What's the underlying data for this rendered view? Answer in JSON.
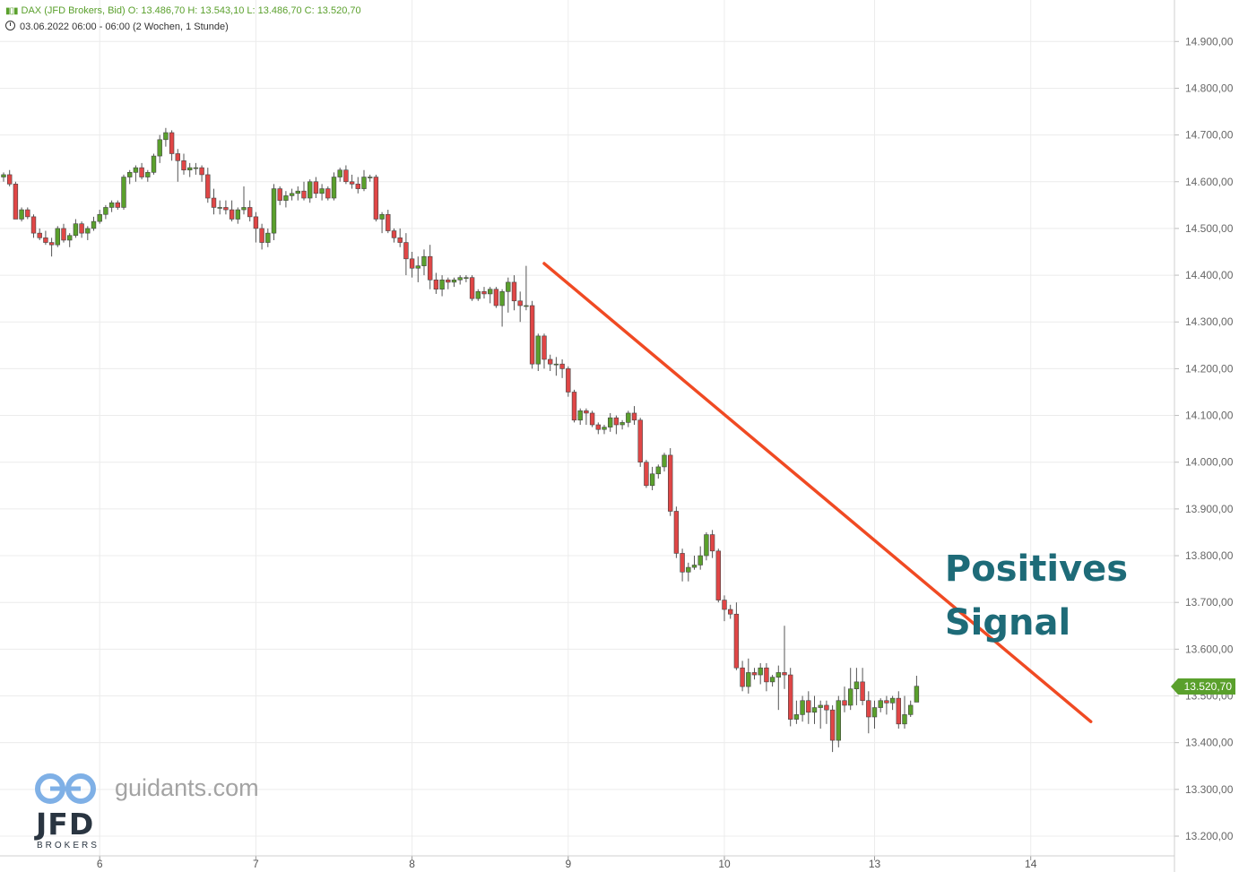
{
  "header": {
    "line1": "DAX (JFD Brokers, Bid)  O: 13.486,70  H: 13.543,10  L: 13.486,70  C: 13.520,70",
    "line2": "03.06.2022 06:00 - 06:00   (2 Wochen, 1 Stunde)"
  },
  "annotation": {
    "line1": "Positives",
    "line2": "Signal"
  },
  "branding": {
    "site": "guidants.com",
    "logo": "JFD",
    "logo_sub": "BROKERS"
  },
  "last_price_label": "13.520,70",
  "colors": {
    "up": "#5aa02c",
    "down": "#e04646",
    "trendline": "#f04a23",
    "annotation": "#1e6b78",
    "grid": "#ececec"
  },
  "chart_data": {
    "type": "candlestick",
    "title": "",
    "y_ticks": [
      13200,
      13300,
      13400,
      13500,
      13600,
      13700,
      13800,
      13900,
      14000,
      14100,
      14200,
      14300,
      14400,
      14500,
      14600,
      14700,
      14800,
      14900
    ],
    "y_tick_labels": [
      "13.200,00",
      "13.300,00",
      "13.400,00",
      "13.500,00",
      "13.600,00",
      "13.700,00",
      "13.800,00",
      "13.900,00",
      "14.000,00",
      "14.100,00",
      "14.200,00",
      "14.300,00",
      "14.400,00",
      "14.500,00",
      "14.600,00",
      "14.700,00",
      "14.800,00",
      "14.900,00"
    ],
    "x_labels": [
      {
        "label": "6",
        "index": 16
      },
      {
        "label": "7",
        "index": 42
      },
      {
        "label": "8",
        "index": 68
      },
      {
        "label": "9",
        "index": 94
      },
      {
        "label": "10",
        "index": 120
      },
      {
        "label": "13",
        "index": 145
      },
      {
        "label": "14",
        "index": 171
      }
    ],
    "candles": [
      [
        14610,
        14620,
        14600,
        14615
      ],
      [
        14615,
        14625,
        14590,
        14595
      ],
      [
        14595,
        14600,
        14520,
        14520
      ],
      [
        14520,
        14545,
        14515,
        14540
      ],
      [
        14540,
        14545,
        14520,
        14525
      ],
      [
        14525,
        14530,
        14480,
        14490
      ],
      [
        14490,
        14500,
        14475,
        14480
      ],
      [
        14480,
        14495,
        14465,
        14470
      ],
      [
        14470,
        14480,
        14440,
        14465
      ],
      [
        14465,
        14505,
        14460,
        14500
      ],
      [
        14500,
        14510,
        14470,
        14475
      ],
      [
        14475,
        14490,
        14460,
        14485
      ],
      [
        14485,
        14520,
        14480,
        14510
      ],
      [
        14510,
        14515,
        14480,
        14490
      ],
      [
        14490,
        14505,
        14475,
        14500
      ],
      [
        14500,
        14525,
        14495,
        14515
      ],
      [
        14515,
        14540,
        14510,
        14530
      ],
      [
        14530,
        14550,
        14520,
        14545
      ],
      [
        14545,
        14560,
        14535,
        14555
      ],
      [
        14555,
        14560,
        14540,
        14545
      ],
      [
        14545,
        14615,
        14540,
        14610
      ],
      [
        14610,
        14625,
        14595,
        14620
      ],
      [
        14620,
        14635,
        14600,
        14630
      ],
      [
        14630,
        14640,
        14605,
        14610
      ],
      [
        14610,
        14625,
        14600,
        14620
      ],
      [
        14620,
        14660,
        14615,
        14655
      ],
      [
        14655,
        14700,
        14640,
        14690
      ],
      [
        14690,
        14715,
        14675,
        14705
      ],
      [
        14705,
        14710,
        14645,
        14660
      ],
      [
        14660,
        14670,
        14600,
        14645
      ],
      [
        14645,
        14660,
        14615,
        14625
      ],
      [
        14625,
        14640,
        14610,
        14630
      ],
      [
        14630,
        14640,
        14615,
        14630
      ],
      [
        14630,
        14635,
        14600,
        14615
      ],
      [
        14615,
        14630,
        14555,
        14565
      ],
      [
        14565,
        14585,
        14530,
        14545
      ],
      [
        14545,
        14560,
        14530,
        14545
      ],
      [
        14545,
        14560,
        14530,
        14540
      ],
      [
        14540,
        14560,
        14515,
        14520
      ],
      [
        14520,
        14545,
        14510,
        14540
      ],
      [
        14540,
        14590,
        14530,
        14545
      ],
      [
        14545,
        14560,
        14515,
        14525
      ],
      [
        14525,
        14535,
        14470,
        14500
      ],
      [
        14500,
        14510,
        14455,
        14470
      ],
      [
        14470,
        14500,
        14460,
        14490
      ],
      [
        14490,
        14595,
        14475,
        14585
      ],
      [
        14585,
        14590,
        14550,
        14560
      ],
      [
        14560,
        14580,
        14545,
        14570
      ],
      [
        14570,
        14585,
        14560,
        14575
      ],
      [
        14575,
        14590,
        14560,
        14580
      ],
      [
        14580,
        14600,
        14560,
        14565
      ],
      [
        14565,
        14605,
        14555,
        14600
      ],
      [
        14600,
        14610,
        14565,
        14575
      ],
      [
        14575,
        14595,
        14560,
        14585
      ],
      [
        14585,
        14590,
        14560,
        14565
      ],
      [
        14565,
        14620,
        14560,
        14610
      ],
      [
        14610,
        14630,
        14600,
        14625
      ],
      [
        14625,
        14635,
        14595,
        14600
      ],
      [
        14600,
        14615,
        14585,
        14595
      ],
      [
        14595,
        14610,
        14575,
        14585
      ],
      [
        14585,
        14625,
        14580,
        14610
      ],
      [
        14610,
        14615,
        14600,
        14610
      ],
      [
        14610,
        14615,
        14515,
        14520
      ],
      [
        14520,
        14535,
        14490,
        14530
      ],
      [
        14530,
        14540,
        14490,
        14495
      ],
      [
        14495,
        14500,
        14470,
        14480
      ],
      [
        14480,
        14500,
        14460,
        14470
      ],
      [
        14470,
        14490,
        14400,
        14435
      ],
      [
        14435,
        14450,
        14395,
        14415
      ],
      [
        14415,
        14440,
        14385,
        14420
      ],
      [
        14420,
        14455,
        14400,
        14440
      ],
      [
        14440,
        14465,
        14370,
        14390
      ],
      [
        14390,
        14405,
        14360,
        14370
      ],
      [
        14370,
        14400,
        14355,
        14390
      ],
      [
        14390,
        14395,
        14370,
        14385
      ],
      [
        14385,
        14395,
        14375,
        14390
      ],
      [
        14390,
        14400,
        14380,
        14395
      ],
      [
        14395,
        14400,
        14385,
        14395
      ],
      [
        14395,
        14400,
        14345,
        14350
      ],
      [
        14350,
        14370,
        14345,
        14365
      ],
      [
        14365,
        14375,
        14350,
        14360
      ],
      [
        14360,
        14375,
        14340,
        14370
      ],
      [
        14370,
        14375,
        14330,
        14335
      ],
      [
        14335,
        14370,
        14290,
        14365
      ],
      [
        14365,
        14395,
        14320,
        14385
      ],
      [
        14385,
        14400,
        14325,
        14345
      ],
      [
        14345,
        14365,
        14300,
        14335
      ],
      [
        14335,
        14420,
        14325,
        14335
      ],
      [
        14335,
        14345,
        14200,
        14210
      ],
      [
        14210,
        14275,
        14195,
        14270
      ],
      [
        14270,
        14275,
        14200,
        14220
      ],
      [
        14220,
        14230,
        14195,
        14210
      ],
      [
        14210,
        14225,
        14185,
        14210
      ],
      [
        14210,
        14220,
        14180,
        14200
      ],
      [
        14200,
        14205,
        14140,
        14150
      ],
      [
        14150,
        14155,
        14085,
        14090
      ],
      [
        14090,
        14115,
        14080,
        14110
      ],
      [
        14110,
        14115,
        14080,
        14105
      ],
      [
        14105,
        14110,
        14075,
        14080
      ],
      [
        14080,
        14085,
        14060,
        14070
      ],
      [
        14070,
        14080,
        14060,
        14075
      ],
      [
        14075,
        14105,
        14065,
        14095
      ],
      [
        14095,
        14100,
        14060,
        14080
      ],
      [
        14080,
        14090,
        14070,
        14085
      ],
      [
        14085,
        14110,
        14075,
        14105
      ],
      [
        14105,
        14120,
        14080,
        14090
      ],
      [
        14090,
        14095,
        13990,
        14000
      ],
      [
        14000,
        14005,
        13945,
        13950
      ],
      [
        13950,
        13990,
        13940,
        13975
      ],
      [
        13975,
        13995,
        13965,
        13990
      ],
      [
        13990,
        14020,
        13980,
        14015
      ],
      [
        14015,
        14030,
        13885,
        13895
      ],
      [
        13895,
        13905,
        13795,
        13805
      ],
      [
        13805,
        13815,
        13745,
        13765
      ],
      [
        13765,
        13785,
        13745,
        13775
      ],
      [
        13775,
        13800,
        13770,
        13780
      ],
      [
        13780,
        13820,
        13770,
        13800
      ],
      [
        13800,
        13850,
        13790,
        13845
      ],
      [
        13845,
        13855,
        13795,
        13810
      ],
      [
        13810,
        13815,
        13700,
        13705
      ],
      [
        13705,
        13715,
        13660,
        13685
      ],
      [
        13685,
        13695,
        13665,
        13675
      ],
      [
        13675,
        13700,
        13555,
        13560
      ],
      [
        13560,
        13575,
        13510,
        13520
      ],
      [
        13520,
        13580,
        13505,
        13550
      ],
      [
        13550,
        13560,
        13535,
        13545
      ],
      [
        13545,
        13570,
        13525,
        13560
      ],
      [
        13560,
        13570,
        13510,
        13530
      ],
      [
        13530,
        13545,
        13520,
        13540
      ],
      [
        13540,
        13565,
        13470,
        13550
      ],
      [
        13550,
        13650,
        13515,
        13545
      ],
      [
        13545,
        13560,
        13435,
        13450
      ],
      [
        13450,
        13490,
        13440,
        13460
      ],
      [
        13460,
        13500,
        13445,
        13490
      ],
      [
        13490,
        13510,
        13440,
        13465
      ],
      [
        13465,
        13500,
        13440,
        13475
      ],
      [
        13475,
        13490,
        13430,
        13480
      ],
      [
        13480,
        13490,
        13440,
        13470
      ],
      [
        13470,
        13480,
        13380,
        13405
      ],
      [
        13405,
        13500,
        13390,
        13490
      ],
      [
        13490,
        13520,
        13465,
        13480
      ],
      [
        13480,
        13560,
        13470,
        13515
      ],
      [
        13515,
        13560,
        13480,
        13530
      ],
      [
        13530,
        13560,
        13480,
        13490
      ],
      [
        13490,
        13510,
        13420,
        13455
      ],
      [
        13455,
        13490,
        13430,
        13475
      ],
      [
        13475,
        13495,
        13465,
        13490
      ],
      [
        13490,
        13500,
        13460,
        13485
      ],
      [
        13485,
        13500,
        13470,
        13495
      ],
      [
        13495,
        13510,
        13430,
        13440
      ],
      [
        13440,
        13500,
        13430,
        13460
      ],
      [
        13460,
        13490,
        13455,
        13480
      ],
      [
        13486.7,
        13543.1,
        13486.7,
        13520.7
      ]
    ],
    "trendline": {
      "from": {
        "index": 90,
        "value": 14425
      },
      "to": {
        "index": 181,
        "value": 13445
      }
    },
    "last_price": 13520.7
  }
}
